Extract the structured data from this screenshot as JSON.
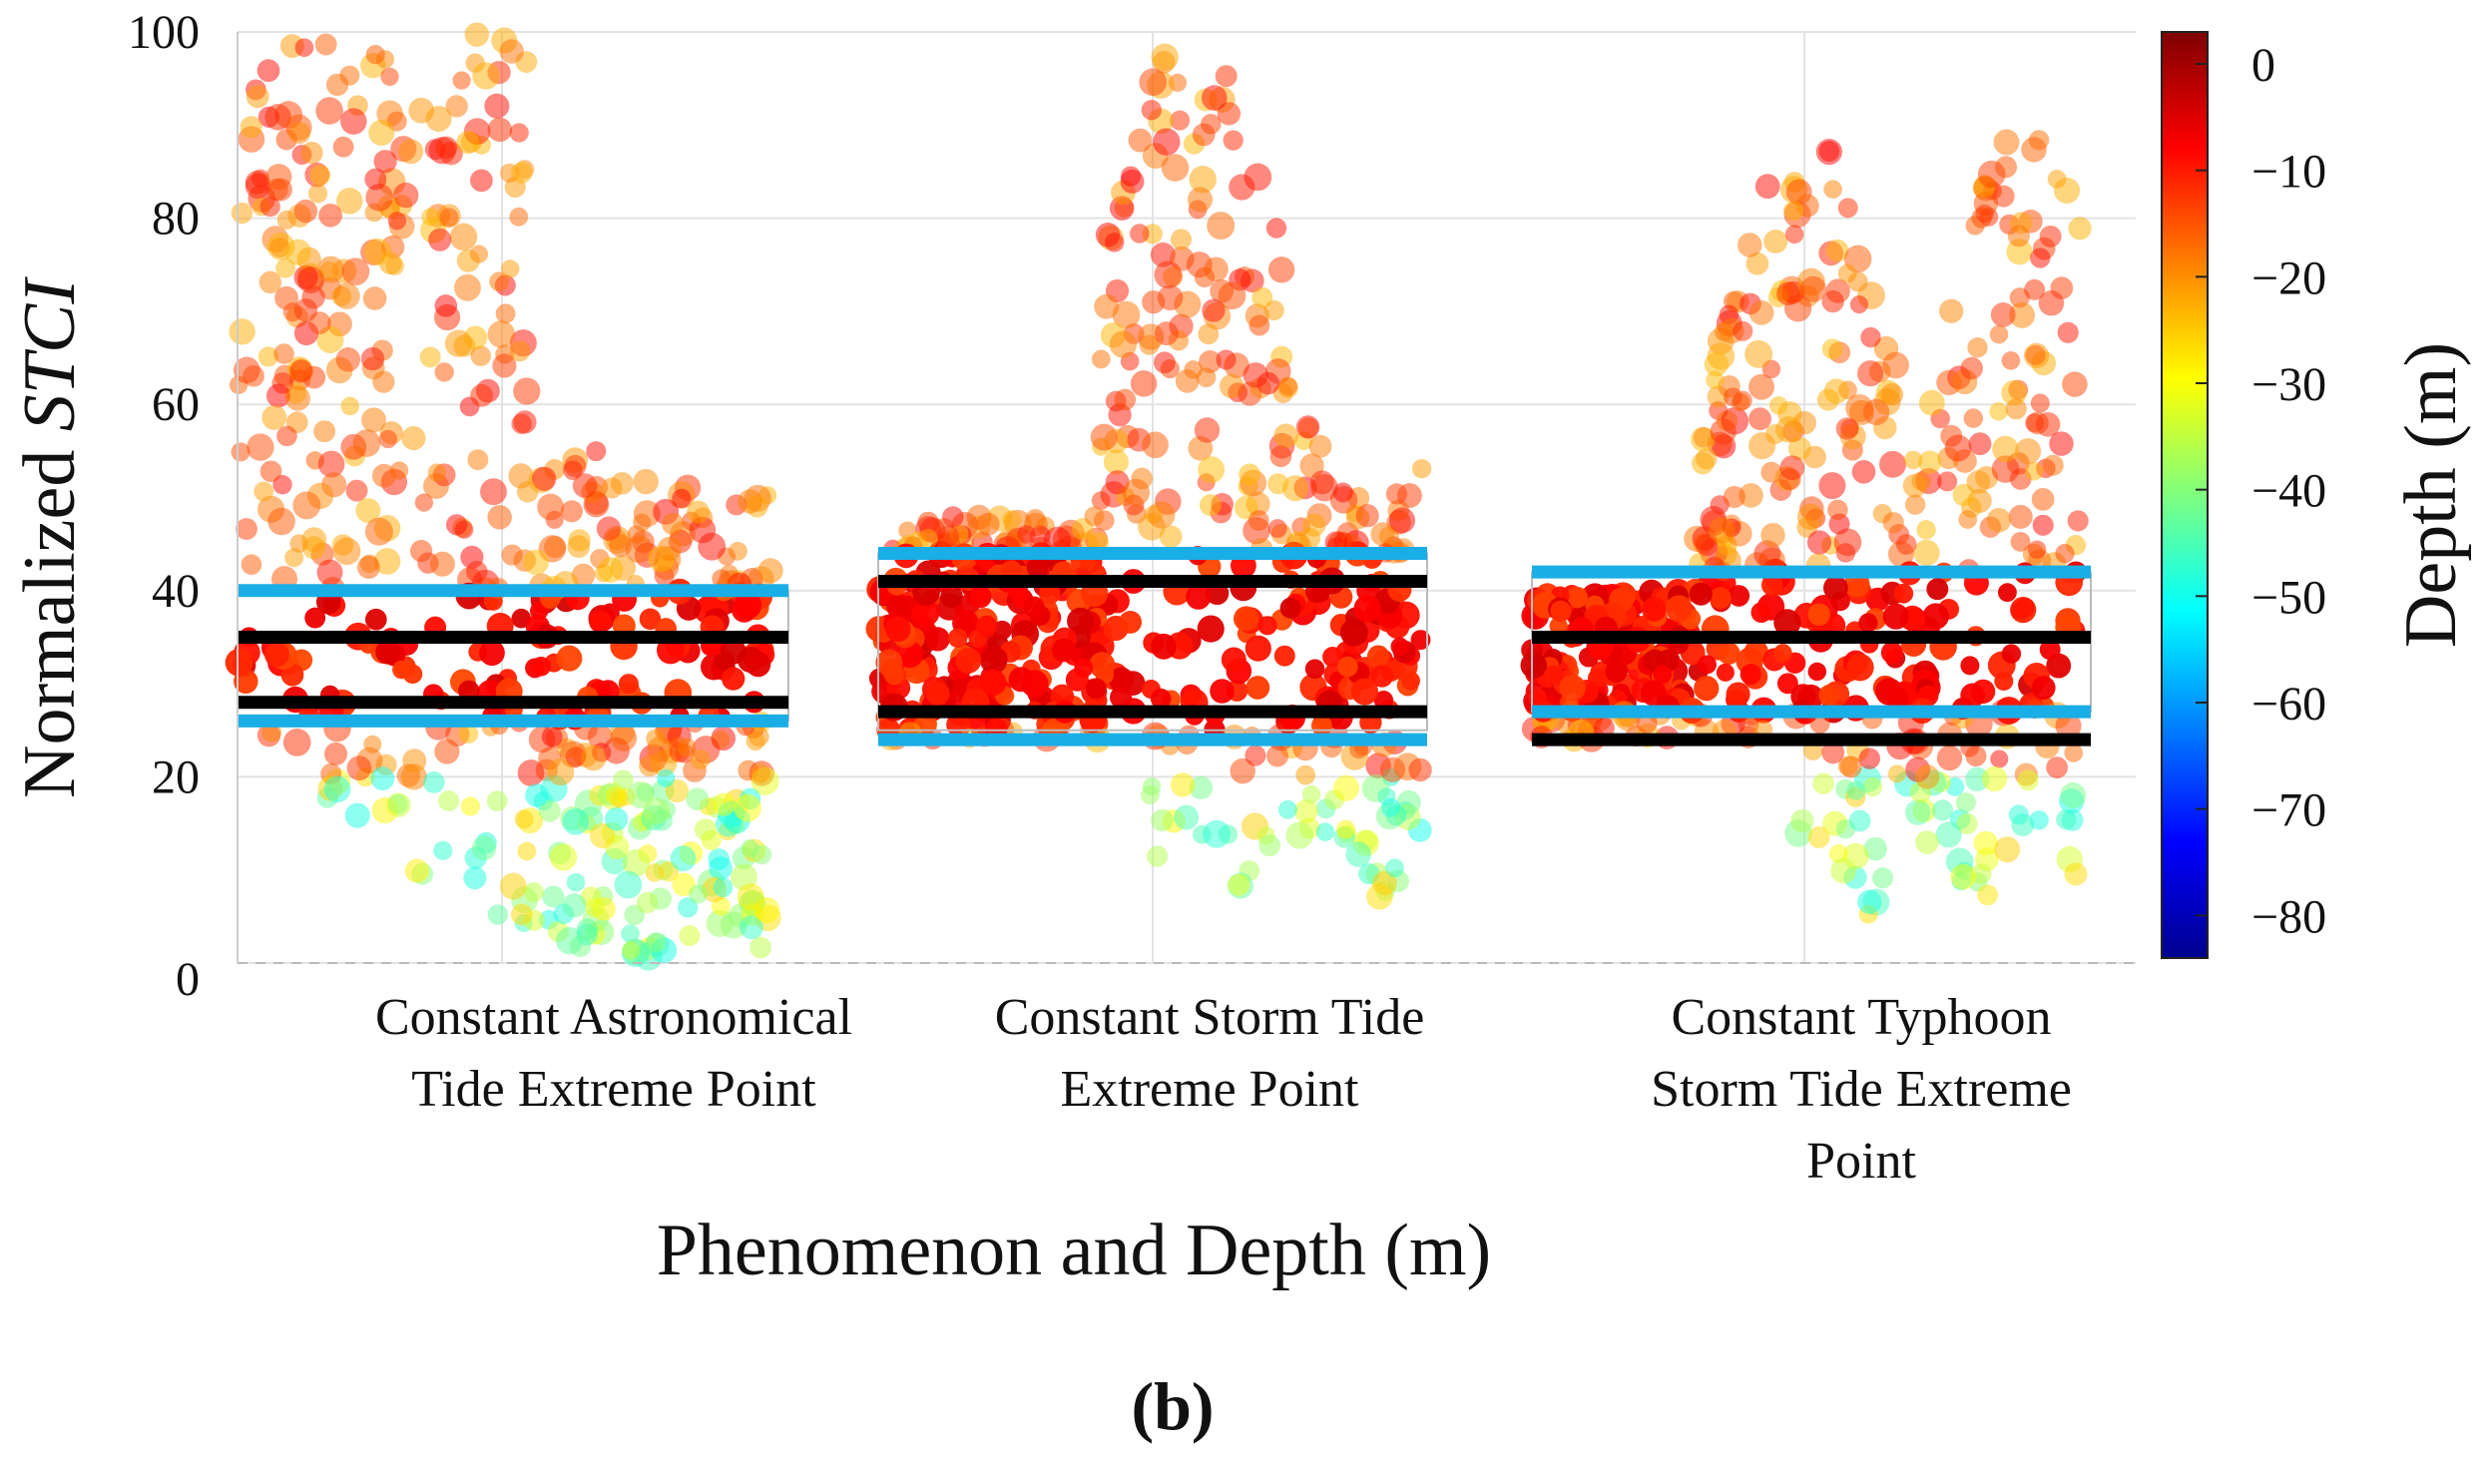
{
  "chart_data": {
    "type": "scatter",
    "title": "",
    "panel_label": "(b)",
    "xlabel": "Phenomenon and Depth (m)",
    "ylabel_prefix": "Normalized",
    "ylabel_italic": "STCI",
    "ylim": [
      0,
      100
    ],
    "yticks": [
      0,
      20,
      40,
      60,
      80,
      100
    ],
    "grid": true,
    "categories": [
      {
        "label_lines": [
          "Constant Astronomical",
          "Tide Extreme Point"
        ]
      },
      {
        "label_lines": [
          "Constant Storm Tide",
          "Extreme Point"
        ]
      },
      {
        "label_lines": [
          "Constant Typhoon",
          "Storm Tide Extreme",
          "Point"
        ]
      }
    ],
    "series": [
      {
        "name": "Constant Astronomical Tide Extreme Point",
        "scatter_range": [
          0,
          100
        ],
        "box_range": [
          26,
          40
        ],
        "blue_lines": [
          40,
          26
        ],
        "black_lines": [
          35,
          28
        ]
      },
      {
        "name": "Constant Storm Tide Extreme Point",
        "scatter_range": [
          0,
          100
        ],
        "box_range": [
          25,
          44
        ],
        "blue_lines": [
          44,
          24
        ],
        "black_lines": [
          41,
          27
        ]
      },
      {
        "name": "Constant Typhoon Storm Tide Extreme Point",
        "scatter_range": [
          0,
          100
        ],
        "box_range": [
          27,
          42
        ],
        "blue_lines": [
          42,
          27
        ],
        "black_lines": [
          35,
          24
        ]
      }
    ],
    "colorbar": {
      "label": "Depth (m)",
      "ticks": [
        0,
        -10,
        -20,
        -30,
        -40,
        -50,
        -60,
        -70,
        -80
      ],
      "range": [
        -84,
        3
      ],
      "colormap": "jet"
    },
    "colors": {
      "blue_line": "#1aaee6",
      "black_line": "#000000"
    }
  }
}
